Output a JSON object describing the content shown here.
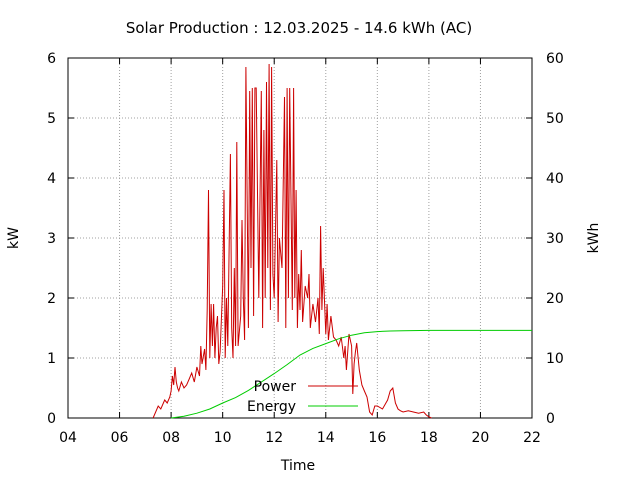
{
  "chart_data": {
    "type": "line",
    "title": "Solar Production : 12.03.2025 - 14.6 kWh (AC)",
    "xlabel": "Time",
    "ylabel": "kW",
    "y2label": "kWh",
    "xlim": [
      4,
      22
    ],
    "ylim": [
      0,
      6
    ],
    "y2lim": [
      0,
      60
    ],
    "xticks": [
      "04",
      "06",
      "08",
      "10",
      "12",
      "14",
      "16",
      "18",
      "20",
      "22"
    ],
    "yticks": [
      "0",
      "1",
      "2",
      "3",
      "4",
      "5",
      "6"
    ],
    "y2ticks": [
      "0",
      "10",
      "20",
      "30",
      "40",
      "50",
      "60"
    ],
    "grid": true,
    "legend_position": "bottom-center",
    "colors": {
      "power": "#cc0000",
      "energy": "#00cc00"
    },
    "series": [
      {
        "name": "Power",
        "axis": "y",
        "x": [
          7.3,
          7.5,
          7.6,
          7.75,
          7.85,
          7.95,
          8.0,
          8.05,
          8.1,
          8.15,
          8.2,
          8.25,
          8.3,
          8.4,
          8.5,
          8.6,
          8.7,
          8.8,
          8.9,
          9.0,
          9.1,
          9.15,
          9.2,
          9.3,
          9.35,
          9.4,
          9.45,
          9.5,
          9.55,
          9.6,
          9.65,
          9.7,
          9.75,
          9.8,
          9.85,
          9.9,
          10.0,
          10.05,
          10.1,
          10.15,
          10.2,
          10.3,
          10.35,
          10.4,
          10.45,
          10.5,
          10.55,
          10.6,
          10.7,
          10.75,
          10.8,
          10.85,
          10.9,
          11.0,
          11.05,
          11.1,
          11.15,
          11.2,
          11.25,
          11.3,
          11.4,
          11.5,
          11.55,
          11.6,
          11.65,
          11.7,
          11.75,
          11.8,
          11.85,
          11.9,
          11.95,
          12.0,
          12.1,
          12.15,
          12.2,
          12.3,
          12.4,
          12.45,
          12.5,
          12.55,
          12.6,
          12.7,
          12.75,
          12.8,
          12.85,
          12.9,
          12.95,
          13.0,
          13.05,
          13.1,
          13.2,
          13.3,
          13.35,
          13.4,
          13.5,
          13.6,
          13.7,
          13.75,
          13.8,
          13.85,
          13.9,
          14.0,
          14.05,
          14.1,
          14.2,
          14.3,
          14.4,
          14.5,
          14.6,
          14.7,
          14.75,
          14.8,
          14.9,
          15.0,
          15.05,
          15.1,
          15.15,
          15.2,
          15.3,
          15.4,
          15.5,
          15.6,
          15.7,
          15.8,
          15.9,
          16.0,
          16.2,
          16.4,
          16.5,
          16.6,
          16.7,
          16.8,
          16.9,
          17.0,
          17.2,
          17.4,
          17.6,
          17.8,
          17.9,
          18.0,
          18.1
        ],
        "y": [
          0.0,
          0.2,
          0.15,
          0.3,
          0.25,
          0.35,
          0.45,
          0.7,
          0.55,
          0.85,
          0.6,
          0.5,
          0.45,
          0.6,
          0.5,
          0.55,
          0.65,
          0.75,
          0.6,
          0.85,
          0.7,
          1.2,
          0.9,
          1.15,
          0.8,
          1.8,
          3.8,
          1.0,
          1.9,
          1.2,
          1.9,
          1.0,
          1.5,
          1.7,
          0.9,
          1.1,
          2.2,
          3.8,
          1.0,
          2.0,
          1.2,
          4.4,
          1.5,
          1.0,
          2.5,
          1.2,
          4.6,
          1.2,
          1.7,
          3.3,
          2.0,
          1.3,
          5.85,
          1.5,
          5.45,
          2.5,
          5.5,
          1.7,
          5.5,
          5.5,
          2.0,
          5.45,
          1.5,
          4.8,
          2.0,
          5.6,
          2.5,
          5.9,
          1.8,
          5.85,
          2.4,
          2.0,
          4.3,
          1.6,
          3.0,
          2.5,
          5.35,
          1.5,
          5.5,
          2.0,
          5.5,
          1.8,
          5.5,
          2.0,
          3.8,
          1.5,
          2.4,
          1.8,
          2.8,
          1.6,
          2.2,
          2.0,
          2.4,
          1.5,
          1.9,
          1.6,
          2.0,
          1.4,
          3.2,
          1.8,
          2.5,
          1.4,
          1.9,
          1.3,
          1.7,
          1.35,
          1.3,
          1.2,
          1.35,
          1.0,
          1.2,
          0.8,
          1.4,
          1.2,
          0.4,
          0.9,
          1.1,
          1.25,
          0.8,
          0.55,
          0.45,
          0.35,
          0.1,
          0.05,
          0.2,
          0.2,
          0.15,
          0.3,
          0.45,
          0.5,
          0.25,
          0.15,
          0.12,
          0.1,
          0.12,
          0.1,
          0.08,
          0.1,
          0.05,
          0.02,
          0.0
        ]
      },
      {
        "name": "Energy",
        "axis": "y2",
        "x": [
          8.0,
          8.5,
          9.0,
          9.5,
          10.0,
          10.5,
          11.0,
          11.5,
          12.0,
          12.5,
          13.0,
          13.5,
          14.0,
          14.5,
          15.0,
          15.5,
          16.0,
          16.5,
          17.0,
          18.0,
          19.0,
          20.0,
          21.0,
          22.0
        ],
        "y": [
          0.0,
          0.3,
          0.8,
          1.5,
          2.5,
          3.4,
          4.6,
          6.0,
          7.4,
          8.9,
          10.5,
          11.6,
          12.4,
          13.2,
          13.8,
          14.2,
          14.4,
          14.5,
          14.55,
          14.6,
          14.6,
          14.6,
          14.6,
          14.6
        ]
      }
    ]
  }
}
